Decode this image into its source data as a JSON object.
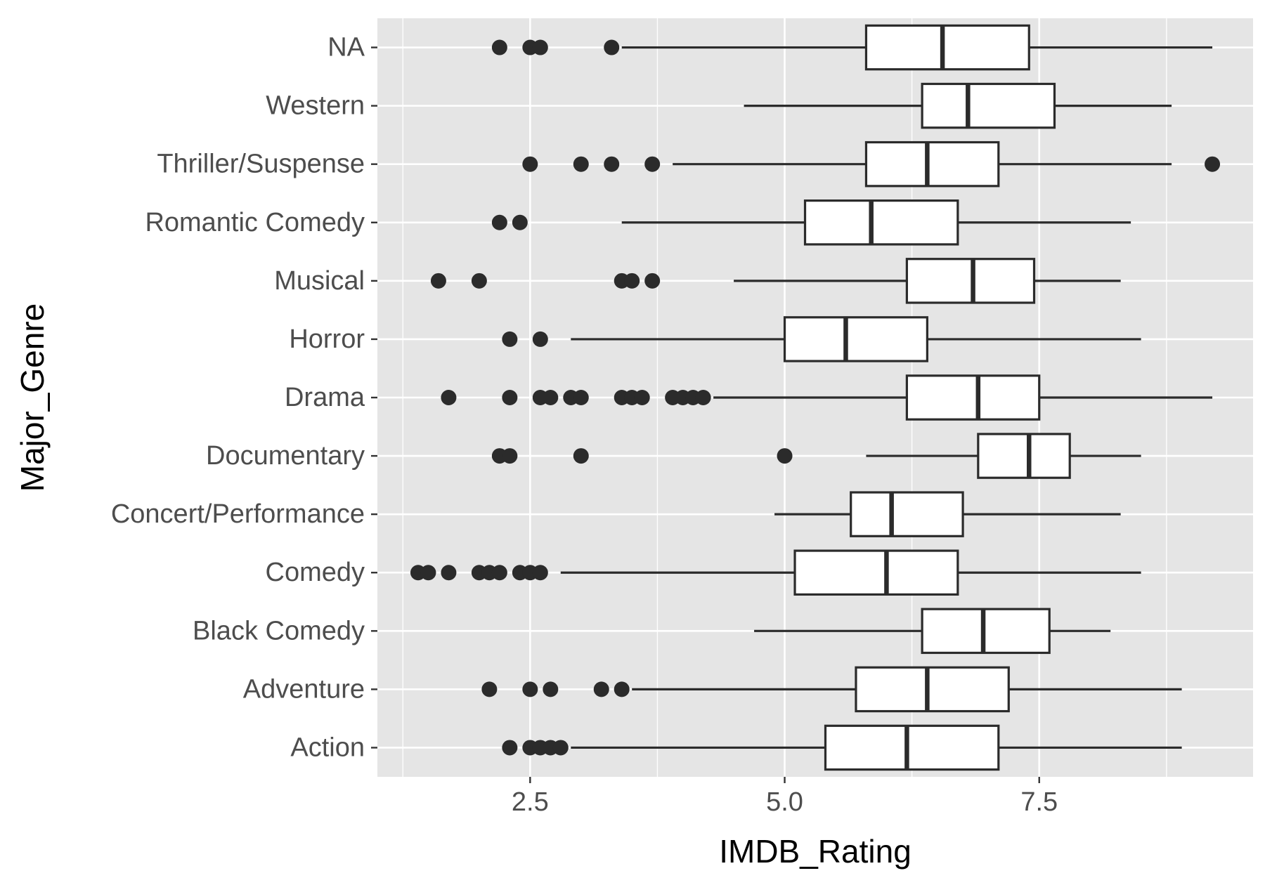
{
  "chart_data": {
    "type": "boxplot",
    "orientation": "horizontal",
    "xlabel": "IMDB_Rating",
    "ylabel": "Major_Genre",
    "xlim": [
      1.0,
      9.6
    ],
    "xticks": [
      2.5,
      5.0,
      7.5
    ],
    "xtick_labels": [
      "2.5",
      "5.0",
      "7.5"
    ],
    "grid": true,
    "legend": "none",
    "colors": {
      "panel": "#e5e5e5",
      "grid": "#ffffff",
      "box_fill": "#ffffff",
      "stroke": "#2b2b2b",
      "outlier": "#2b2b2b"
    },
    "categories": [
      "Action",
      "Adventure",
      "Black Comedy",
      "Comedy",
      "Concert/Performance",
      "Documentary",
      "Drama",
      "Horror",
      "Musical",
      "Romantic Comedy",
      "Thriller/Suspense",
      "Western",
      "NA"
    ],
    "boxes": [
      {
        "genre": "Action",
        "whisker_low": 2.9,
        "q1": 5.4,
        "median": 6.2,
        "q3": 7.1,
        "whisker_high": 8.9,
        "outliers": [
          2.3,
          2.5,
          2.6,
          2.7,
          2.8
        ]
      },
      {
        "genre": "Adventure",
        "whisker_low": 3.5,
        "q1": 5.7,
        "median": 6.4,
        "q3": 7.2,
        "whisker_high": 8.9,
        "outliers": [
          2.1,
          2.5,
          2.7,
          3.2,
          3.4
        ]
      },
      {
        "genre": "Black Comedy",
        "whisker_low": 4.7,
        "q1": 6.35,
        "median": 6.95,
        "q3": 7.6,
        "whisker_high": 8.2,
        "outliers": []
      },
      {
        "genre": "Comedy",
        "whisker_low": 2.8,
        "q1": 5.1,
        "median": 6.0,
        "q3": 6.7,
        "whisker_high": 8.5,
        "outliers": [
          1.4,
          1.5,
          1.7,
          2.0,
          2.1,
          2.2,
          2.4,
          2.5,
          2.6
        ]
      },
      {
        "genre": "Concert/Performance",
        "whisker_low": 4.9,
        "q1": 5.65,
        "median": 6.05,
        "q3": 6.75,
        "whisker_high": 8.3,
        "outliers": []
      },
      {
        "genre": "Documentary",
        "whisker_low": 5.8,
        "q1": 6.9,
        "median": 7.4,
        "q3": 7.8,
        "whisker_high": 8.5,
        "outliers": [
          2.2,
          2.3,
          3.0,
          5.0
        ]
      },
      {
        "genre": "Drama",
        "whisker_low": 4.3,
        "q1": 6.2,
        "median": 6.9,
        "q3": 7.5,
        "whisker_high": 9.2,
        "outliers": [
          1.7,
          2.3,
          2.6,
          2.7,
          2.9,
          3.0,
          3.4,
          3.5,
          3.6,
          3.9,
          4.0,
          4.1,
          4.2
        ]
      },
      {
        "genre": "Horror",
        "whisker_low": 2.9,
        "q1": 5.0,
        "median": 5.6,
        "q3": 6.4,
        "whisker_high": 8.5,
        "outliers": [
          2.3,
          2.6
        ]
      },
      {
        "genre": "Musical",
        "whisker_low": 4.5,
        "q1": 6.2,
        "median": 6.85,
        "q3": 7.45,
        "whisker_high": 8.3,
        "outliers": [
          1.6,
          2.0,
          3.4,
          3.5,
          3.7
        ]
      },
      {
        "genre": "Romantic Comedy",
        "whisker_low": 3.4,
        "q1": 5.2,
        "median": 5.85,
        "q3": 6.7,
        "whisker_high": 8.4,
        "outliers": [
          2.2,
          2.4
        ]
      },
      {
        "genre": "Thriller/Suspense",
        "whisker_low": 3.9,
        "q1": 5.8,
        "median": 6.4,
        "q3": 7.1,
        "whisker_high": 8.8,
        "outliers": [
          2.5,
          3.0,
          3.3,
          3.7,
          9.2
        ]
      },
      {
        "genre": "Western",
        "whisker_low": 4.6,
        "q1": 6.35,
        "median": 6.8,
        "q3": 7.65,
        "whisker_high": 8.8,
        "outliers": []
      },
      {
        "genre": "NA",
        "whisker_low": 3.4,
        "q1": 5.8,
        "median": 6.55,
        "q3": 7.4,
        "whisker_high": 9.2,
        "outliers": [
          2.2,
          2.5,
          2.6,
          3.3
        ]
      }
    ]
  }
}
